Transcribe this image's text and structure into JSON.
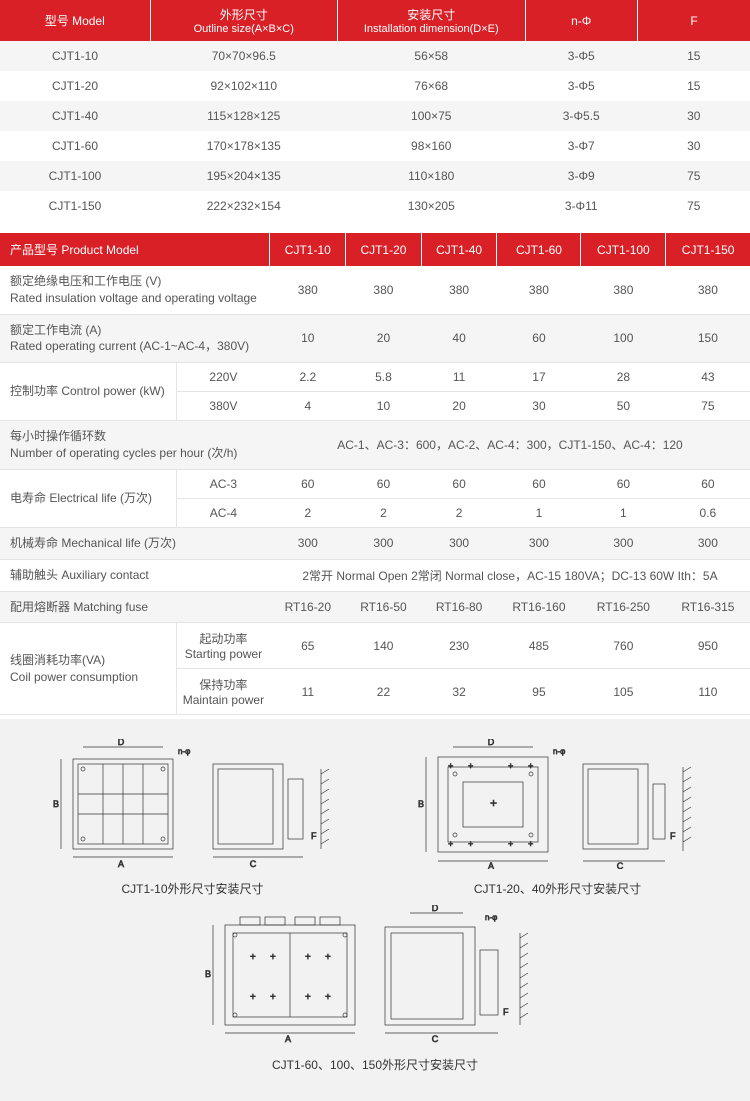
{
  "table1": {
    "headers": [
      {
        "cn": "型号 Model",
        "en": ""
      },
      {
        "cn": "外形尺寸",
        "en": "Outline size(A×B×C)"
      },
      {
        "cn": "安装尺寸",
        "en": "Installation dimension(D×E)"
      },
      {
        "cn": "n-Φ",
        "en": ""
      },
      {
        "cn": "F",
        "en": ""
      }
    ],
    "rows": [
      [
        "CJT1-10",
        "70×70×96.5",
        "56×58",
        "3-Φ5",
        "15"
      ],
      [
        "CJT1-20",
        "92×102×110",
        "76×68",
        "3-Φ5",
        "15"
      ],
      [
        "CJT1-40",
        "115×128×125",
        "100×75",
        "3-Φ5.5",
        "30"
      ],
      [
        "CJT1-60",
        "170×178×135",
        "98×160",
        "3-Φ7",
        "30"
      ],
      [
        "CJT1-100",
        "195×204×135",
        "110×180",
        "3-Φ9",
        "75"
      ],
      [
        "CJT1-150",
        "222×232×154",
        "130×205",
        "3-Φ11",
        "75"
      ]
    ]
  },
  "table2": {
    "header_label": "产品型号 Product Model",
    "models": [
      "CJT1-10",
      "CJT1-20",
      "CJT1-40",
      "CJT1-60",
      "CJT1-100",
      "CJT1-150"
    ],
    "rows": {
      "voltage": {
        "label_cn": "额定绝缘电压和工作电压 (V)",
        "label_en": "Rated insulation voltage and operating voltage",
        "vals": [
          "380",
          "380",
          "380",
          "380",
          "380",
          "380"
        ]
      },
      "current": {
        "label_cn": "额定工作电流 (A)",
        "label_en": "Rated operating current (AC-1~AC-4，380V)",
        "vals": [
          "10",
          "20",
          "40",
          "60",
          "100",
          "150"
        ]
      },
      "ctrl_power": {
        "label_cn": "控制功率 Control power (kW)",
        "sub1": "220V",
        "sub2": "380V",
        "vals1": [
          "2.2",
          "5.8",
          "11",
          "17",
          "28",
          "43"
        ],
        "vals2": [
          "4",
          "10",
          "20",
          "30",
          "50",
          "75"
        ]
      },
      "cycles": {
        "label_cn": "每小时操作循环数",
        "label_en": "Number of operating cycles per hour (次/h)",
        "text": "AC-1、AC-3：600，AC-2、AC-4：300，CJT1-150、AC-4：120"
      },
      "elife": {
        "label_cn": "电寿命 Electrical life (万次)",
        "sub1": "AC-3",
        "sub2": "AC-4",
        "vals1": [
          "60",
          "60",
          "60",
          "60",
          "60",
          "60"
        ],
        "vals2": [
          "2",
          "2",
          "2",
          "1",
          "1",
          "0.6"
        ]
      },
      "mlife": {
        "label_cn": "机械寿命 Mechanical life (万次)",
        "vals": [
          "300",
          "300",
          "300",
          "300",
          "300",
          "300"
        ]
      },
      "aux": {
        "label_cn": "辅助触头 Auxiliary contact",
        "text": "2常开 Normal Open  2常闭 Normal close，AC-15   180VA；DC-13   60W   Ith：5A"
      },
      "fuse": {
        "label_cn": "配用熔断器 Matching fuse",
        "vals": [
          "RT16-20",
          "RT16-50",
          "RT16-80",
          "RT16-160",
          "RT16-250",
          "RT16-315"
        ]
      },
      "coil": {
        "label_cn": "线圈消耗功率(VA)",
        "label_en": "Coil power consumption",
        "sub1_cn": "起动功率",
        "sub1_en": "Starting power",
        "sub2_cn": "保持功率",
        "sub2_en": "Maintain power",
        "vals1": [
          "65",
          "140",
          "230",
          "485",
          "760",
          "950"
        ],
        "vals2": [
          "11",
          "22",
          "32",
          "95",
          "105",
          "110"
        ]
      }
    }
  },
  "diagrams": {
    "cap1": "CJT1-10外形尺寸安装尺寸",
    "cap2": "CJT1-20、40外形尺寸安装尺寸",
    "cap3": "CJT1-60、100、150外形尺寸安装尺寸"
  },
  "colors": {
    "header_bg": "#d92027",
    "header_fg": "#ffffff",
    "row_alt": "#f5f5f5",
    "text": "#555555",
    "border": "#e5e5e5",
    "dia_bg": "#f2f2f2"
  }
}
